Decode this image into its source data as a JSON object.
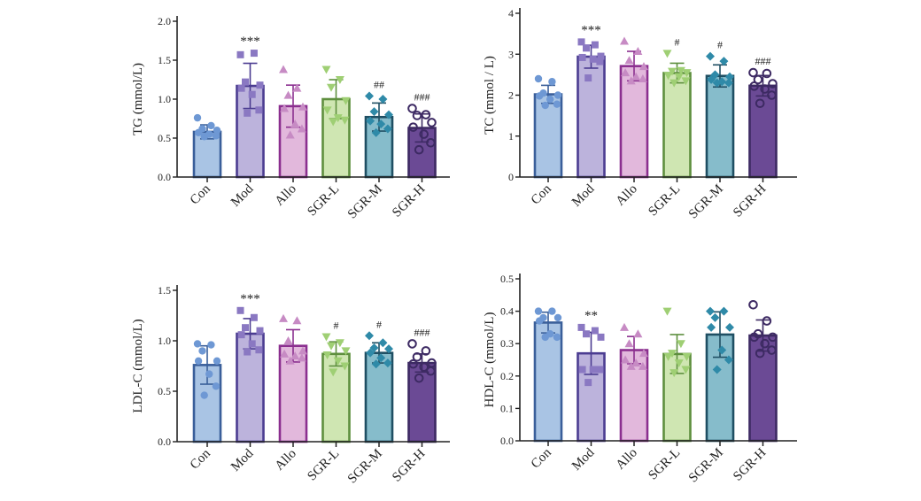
{
  "colors": {
    "fills": [
      "#a9c4e4",
      "#bcb3dc",
      "#e2b8dc",
      "#cfe6b2",
      "#86bccb",
      "#6b4a95"
    ],
    "strokes": [
      "#3a5f9a",
      "#4b3c91",
      "#8b2f8f",
      "#5e8f3e",
      "#1f4f63",
      "#3d2a63"
    ],
    "points": [
      "#6e98d4",
      "#8a78c2",
      "#c78bc4",
      "#9fcf74",
      "#2f8aa8",
      "#3d2a63"
    ]
  },
  "chart_data": [
    {
      "type": "bar",
      "title": "",
      "xlabel": "",
      "ylabel": "TG (mmol/L)",
      "ylim": [
        0,
        2.0
      ],
      "yticks": [
        "0.0",
        "0.5",
        "1.0",
        "1.5",
        "2.0"
      ],
      "categories": [
        "Con",
        "Mod",
        "Allo",
        "SGR-L",
        "SGR-M",
        "SGR-H"
      ],
      "values": [
        0.58,
        1.17,
        0.91,
        1.0,
        0.77,
        0.63
      ],
      "sd": [
        0.09,
        0.29,
        0.27,
        0.25,
        0.18,
        0.18
      ],
      "annotations": [
        "",
        "***",
        "",
        "",
        "##",
        "###"
      ],
      "markers": [
        "circle",
        "square",
        "triangle",
        "triangle-down",
        "diamond",
        "circle-open"
      ],
      "points": [
        [
          0.76,
          0.66,
          0.62,
          0.6,
          0.57,
          0.55,
          0.53,
          0.52
        ],
        [
          1.57,
          1.59,
          1.22,
          1.18,
          1.14,
          1.06,
          0.86,
          0.82
        ],
        [
          1.38,
          1.14,
          1.05,
          0.9,
          0.88,
          0.68,
          0.62,
          0.54
        ],
        [
          1.38,
          1.25,
          1.15,
          0.98,
          0.86,
          0.76,
          0.73,
          0.71
        ],
        [
          1.04,
          1.0,
          0.84,
          0.8,
          0.72,
          0.68,
          0.62,
          0.57
        ],
        [
          0.88,
          0.8,
          0.79,
          0.7,
          0.64,
          0.55,
          0.44,
          0.35
        ]
      ]
    },
    {
      "type": "bar",
      "title": "",
      "xlabel": "",
      "ylabel": "TC (mmol / L)",
      "ylim": [
        0,
        4
      ],
      "yticks": [
        "0",
        "1",
        "2",
        "3",
        "4"
      ],
      "categories": [
        "Con",
        "Mod",
        "Allo",
        "SGR-L",
        "SGR-M",
        "SGR-H"
      ],
      "values": [
        2.02,
        2.94,
        2.71,
        2.54,
        2.47,
        2.23
      ],
      "sd": [
        0.22,
        0.28,
        0.36,
        0.24,
        0.27,
        0.25
      ],
      "annotations": [
        "",
        "***",
        "",
        "#",
        "#",
        "###"
      ],
      "markers": [
        "circle",
        "square",
        "triangle",
        "triangle-down",
        "diamond",
        "circle-open"
      ],
      "points": [
        [
          2.4,
          2.33,
          2.05,
          2.0,
          1.98,
          1.9,
          1.78,
          1.75
        ],
        [
          3.3,
          3.23,
          3.15,
          2.95,
          2.92,
          2.88,
          2.82,
          2.42
        ],
        [
          3.32,
          3.07,
          2.85,
          2.7,
          2.55,
          2.45,
          2.4,
          2.35
        ],
        [
          3.02,
          2.6,
          2.58,
          2.55,
          2.48,
          2.45,
          2.35,
          2.3
        ],
        [
          2.95,
          2.83,
          2.5,
          2.45,
          2.38,
          2.33,
          2.3,
          2.3
        ],
        [
          2.55,
          2.53,
          2.38,
          2.28,
          2.22,
          2.15,
          2.0,
          1.8
        ]
      ]
    },
    {
      "type": "bar",
      "title": "",
      "xlabel": "",
      "ylabel": "LDL-C (mmol/L)",
      "ylim": [
        0,
        1.5
      ],
      "yticks": [
        "0.0",
        "0.5",
        "1.0",
        "1.5"
      ],
      "categories": [
        "Con",
        "Mod",
        "Allo",
        "SGR-L",
        "SGR-M",
        "SGR-H"
      ],
      "values": [
        0.76,
        1.07,
        0.95,
        0.87,
        0.88,
        0.78
      ],
      "sd": [
        0.19,
        0.15,
        0.16,
        0.12,
        0.1,
        0.09
      ],
      "annotations": [
        "",
        "***",
        "",
        "#",
        "#",
        "###"
      ],
      "markers": [
        "circle",
        "square",
        "triangle",
        "triangle-down",
        "diamond",
        "circle-open"
      ],
      "points": [
        [
          0.97,
          0.96,
          0.9,
          0.8,
          0.8,
          0.67,
          0.55,
          0.46
        ],
        [
          1.3,
          1.23,
          1.13,
          1.1,
          1.06,
          0.97,
          0.91,
          0.89
        ],
        [
          1.22,
          1.2,
          1.0,
          0.9,
          0.87,
          0.85,
          0.83,
          0.8
        ],
        [
          1.04,
          0.98,
          0.95,
          0.9,
          0.86,
          0.8,
          0.75,
          0.69
        ],
        [
          1.05,
          0.98,
          0.93,
          0.92,
          0.88,
          0.83,
          0.78,
          0.77
        ],
        [
          0.97,
          0.9,
          0.84,
          0.78,
          0.77,
          0.74,
          0.7,
          0.63
        ]
      ]
    },
    {
      "type": "bar",
      "title": "",
      "xlabel": "",
      "ylabel": "HDL-C (mmol/L)",
      "ylim": [
        0,
        0.5
      ],
      "yticks": [
        "0.0",
        "0.1",
        "0.2",
        "0.3",
        "0.4",
        "0.5"
      ],
      "categories": [
        "Con",
        "Mod",
        "Allo",
        "SGR-L",
        "SGR-M",
        "SGR-H"
      ],
      "values": [
        0.365,
        0.27,
        0.28,
        0.268,
        0.328,
        0.325
      ],
      "sd": [
        0.032,
        0.065,
        0.042,
        0.06,
        0.07,
        0.048
      ],
      "annotations": [
        "",
        "**",
        "",
        "",
        "",
        ""
      ],
      "markers": [
        "circle",
        "square",
        "triangle",
        "triangle-down",
        "diamond",
        "circle-open"
      ],
      "points": [
        [
          0.4,
          0.4,
          0.38,
          0.38,
          0.37,
          0.33,
          0.32,
          0.32
        ],
        [
          0.35,
          0.34,
          0.33,
          0.32,
          0.22,
          0.22,
          0.22,
          0.18
        ],
        [
          0.35,
          0.33,
          0.3,
          0.27,
          0.25,
          0.24,
          0.23,
          0.23
        ],
        [
          0.4,
          0.3,
          0.27,
          0.26,
          0.26,
          0.24,
          0.22,
          0.21
        ],
        [
          0.4,
          0.4,
          0.38,
          0.35,
          0.35,
          0.28,
          0.25,
          0.22
        ],
        [
          0.42,
          0.37,
          0.33,
          0.32,
          0.32,
          0.3,
          0.28,
          0.27
        ]
      ]
    }
  ]
}
